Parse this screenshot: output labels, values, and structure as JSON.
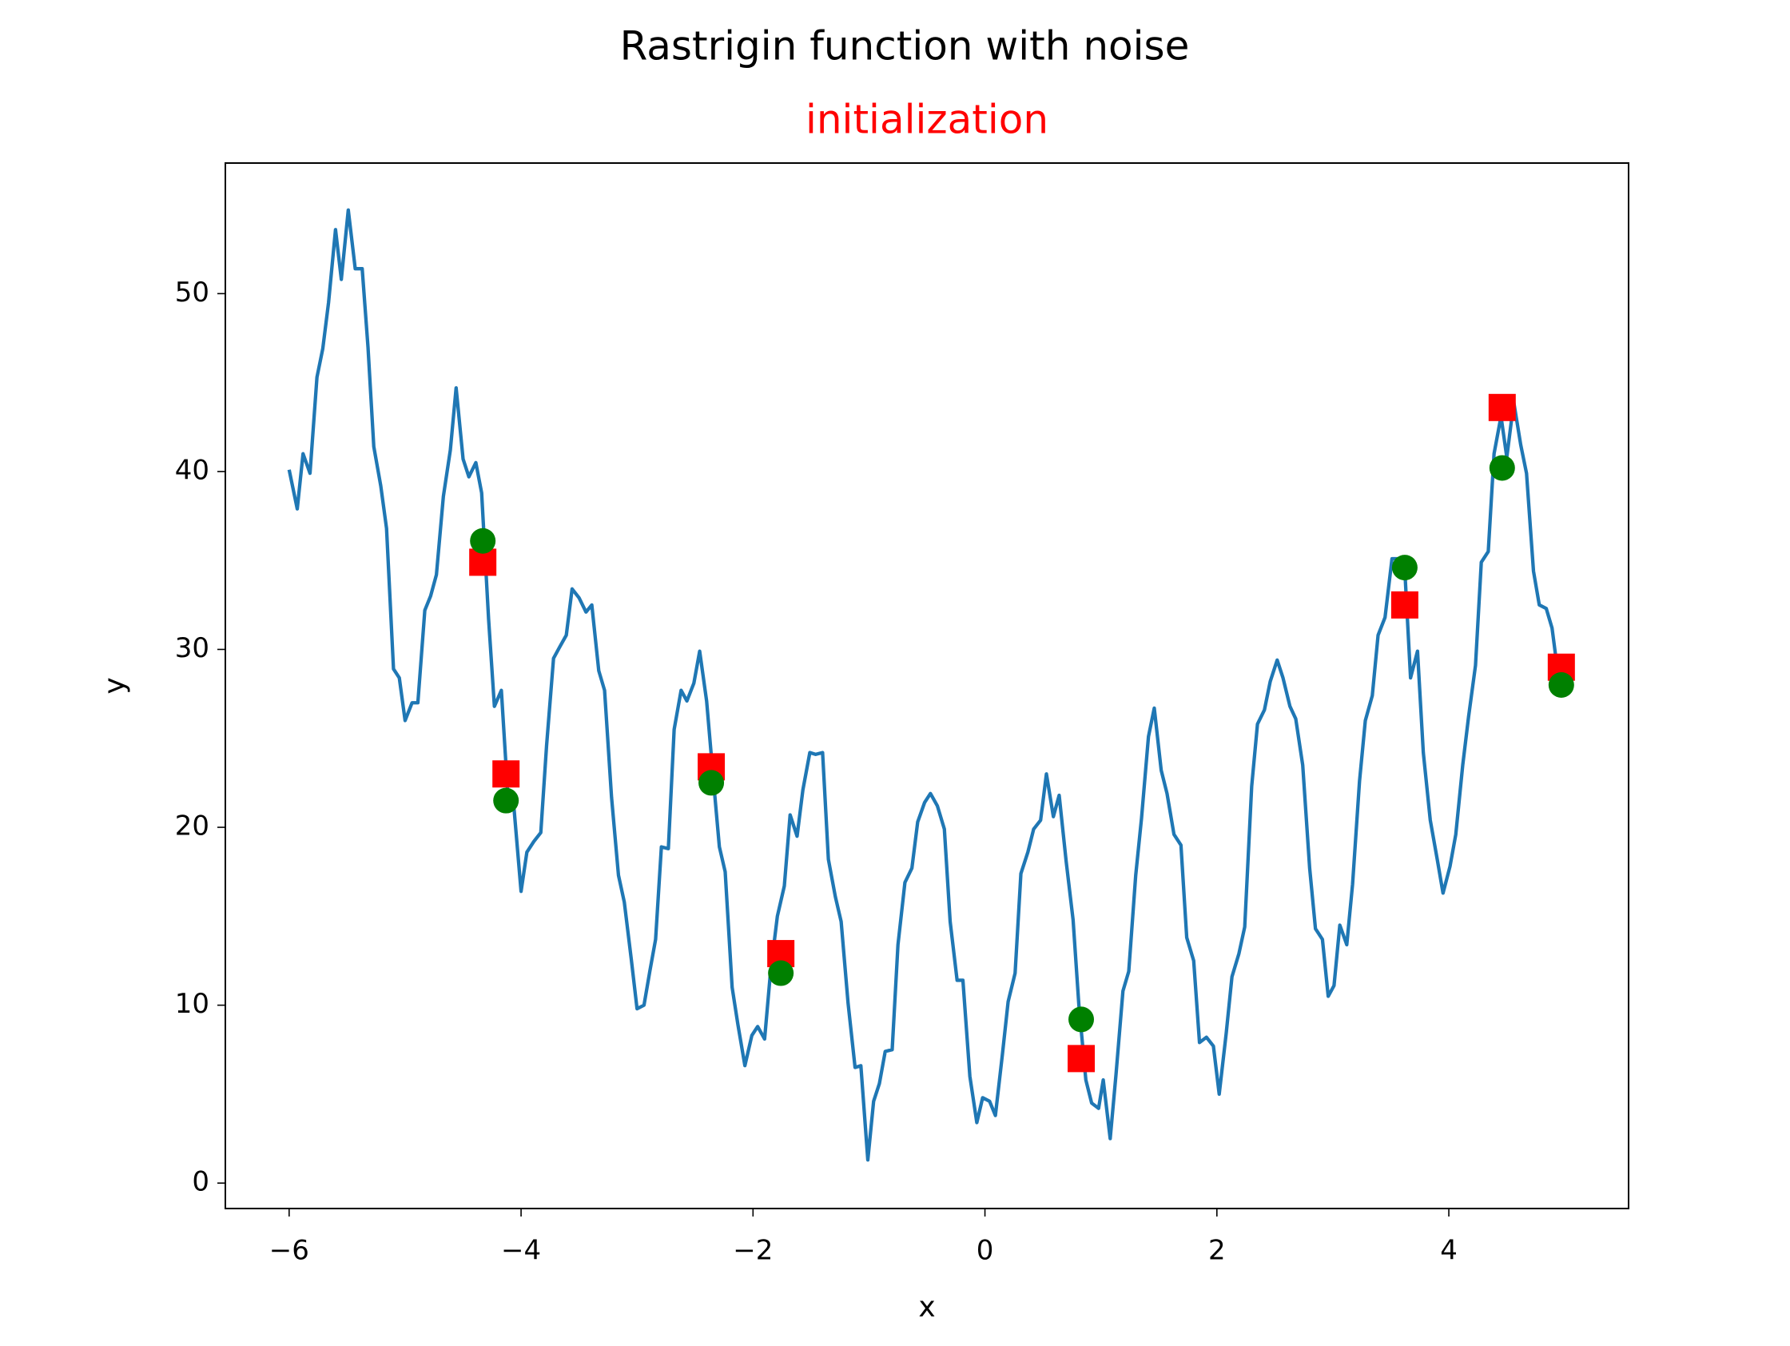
{
  "chart_data": {
    "type": "line",
    "title": "Rastrigin function with noise",
    "subtitle": "initialization",
    "subtitle_color": "#ff0000",
    "x_label": "x",
    "y_label": "y",
    "xlim": [
      -6.55,
      5.55
    ],
    "ylim": [
      -1.43,
      57.34
    ],
    "xticks": [
      {
        "value": -6,
        "label": "−6"
      },
      {
        "value": -4,
        "label": "−4"
      },
      {
        "value": -2,
        "label": "−2"
      },
      0,
      2,
      4
    ],
    "yticks": [
      0,
      10,
      20,
      30,
      40,
      50
    ],
    "grid": false,
    "series": [
      {
        "mark": "line",
        "color": "#1f77b4",
        "x": [
          -6,
          -5.93,
          -5.88,
          -5.82,
          -5.76,
          -5.71,
          -5.66,
          -5.6,
          -5.55,
          -5.49,
          -5.43,
          -5.37,
          -5.32,
          -5.27,
          -5.21,
          -5.16,
          -5.1,
          -5.05,
          -5,
          -4.94,
          -4.89,
          -4.83,
          -4.78,
          -4.73,
          -4.67,
          -4.61,
          -4.56,
          -4.5,
          -4.45,
          -4.39,
          -4.34,
          -4.28,
          -4.23,
          -4.17,
          -4.11,
          -4.06,
          -4,
          -3.95,
          -3.89,
          -3.83,
          -3.78,
          -3.72,
          -3.67,
          -3.61,
          -3.56,
          -3.5,
          -3.44,
          -3.39,
          -3.33,
          -3.28,
          -3.22,
          -3.16,
          -3.11,
          -3.05,
          -3,
          -2.94,
          -2.89,
          -2.84,
          -2.79,
          -2.73,
          -2.68,
          -2.62,
          -2.57,
          -2.51,
          -2.46,
          -2.4,
          -2.35,
          -2.29,
          -2.24,
          -2.18,
          -2.13,
          -2.07,
          -2.01,
          -1.96,
          -1.9,
          -1.85,
          -1.79,
          -1.73,
          -1.68,
          -1.62,
          -1.57,
          -1.51,
          -1.46,
          -1.4,
          -1.35,
          -1.29,
          -1.24,
          -1.18,
          -1.12,
          -1.07,
          -1.01,
          -0.96,
          -0.91,
          -0.86,
          -0.8,
          -0.75,
          -0.69,
          -0.63,
          -0.58,
          -0.52,
          -0.47,
          -0.41,
          -0.35,
          -0.3,
          -0.24,
          -0.19,
          -0.13,
          -0.07,
          -0.02,
          0.04,
          0.09,
          0.15,
          0.2,
          0.26,
          0.31,
          0.37,
          0.42,
          0.48,
          0.53,
          0.59,
          0.64,
          0.7,
          0.76,
          0.81,
          0.87,
          0.92,
          0.98,
          1.02,
          1.08,
          1.13,
          1.19,
          1.24,
          1.3,
          1.35,
          1.41,
          1.46,
          1.52,
          1.57,
          1.63,
          1.69,
          1.74,
          1.8,
          1.85,
          1.91,
          1.97,
          2.02,
          2.08,
          2.13,
          2.19,
          2.24,
          2.3,
          2.35,
          2.41,
          2.46,
          2.52,
          2.57,
          2.63,
          2.68,
          2.74,
          2.8,
          2.85,
          2.91,
          2.96,
          3.01,
          3.06,
          3.12,
          3.17,
          3.23,
          3.28,
          3.34,
          3.39,
          3.45,
          3.51,
          3.56,
          3.62,
          3.67,
          3.73,
          3.78,
          3.84,
          3.9,
          3.95,
          4.01,
          4.06,
          4.12,
          4.17,
          4.23,
          4.28,
          4.34,
          4.39,
          4.45,
          4.5,
          4.56,
          4.62,
          4.67,
          4.73,
          4.78,
          4.84,
          4.89,
          4.95,
          5
        ],
        "values": [
          40.1,
          37.9,
          41,
          39.9,
          45.3,
          46.9,
          49.5,
          53.6,
          50.8,
          54.7,
          51.4,
          51.4,
          47,
          41.4,
          39.2,
          36.8,
          28.9,
          28.4,
          26,
          27,
          27,
          32.2,
          33,
          34.2,
          38.6,
          41.2,
          44.7,
          40.7,
          39.7,
          40.5,
          38.8,
          31.7,
          26.8,
          27.7,
          21.4,
          21,
          16.4,
          18.6,
          19.2,
          19.7,
          24.6,
          29.5,
          30.1,
          30.8,
          33.4,
          32.9,
          32.1,
          32.5,
          28.8,
          27.7,
          21.7,
          17.3,
          15.8,
          12.6,
          9.8,
          10,
          11.9,
          13.7,
          18.9,
          18.8,
          25.5,
          27.7,
          27.1,
          28.1,
          29.9,
          27.1,
          23.3,
          18.9,
          17.5,
          11,
          8.9,
          6.6,
          8.3,
          8.8,
          8.1,
          11.8,
          15,
          16.7,
          20.7,
          19.5,
          22.1,
          24.2,
          24.1,
          24.2,
          18.2,
          16.1,
          14.7,
          10.1,
          6.5,
          6.6,
          1.3,
          4.6,
          5.6,
          7.4,
          7.5,
          13.4,
          16.9,
          17.7,
          20.3,
          21.4,
          21.9,
          21.2,
          19.9,
          14.7,
          11.4,
          11.4,
          6,
          3.4,
          4.8,
          4.6,
          3.8,
          7.2,
          10.2,
          11.8,
          17.4,
          18.6,
          19.9,
          20.4,
          23,
          20.6,
          21.8,
          18.1,
          14.8,
          10,
          5.8,
          4.5,
          4.2,
          5.8,
          2.5,
          6.1,
          10.8,
          11.9,
          17.3,
          20.5,
          25.1,
          26.7,
          23.2,
          21.9,
          19.6,
          19,
          13.8,
          12.5,
          7.9,
          8.2,
          7.7,
          5,
          8.4,
          11.6,
          12.9,
          14.4,
          22.3,
          25.8,
          26.6,
          28.2,
          29.4,
          28.4,
          26.8,
          26.1,
          23.5,
          17.7,
          14.3,
          13.7,
          10.5,
          11.1,
          14.5,
          13.4,
          16.8,
          22.6,
          26,
          27.4,
          30.8,
          31.8,
          35.1,
          35.1,
          34.5,
          28.4,
          29.9,
          24.2,
          20.4,
          18.2,
          16.3,
          17.8,
          19.6,
          23.5,
          26.2,
          29.1,
          34.9,
          35.5,
          41,
          43.1,
          40.8,
          43.9,
          41.5,
          39.9,
          34.4,
          32.5,
          32.3,
          31.2,
          28.2,
          28.2
        ]
      },
      {
        "mark": "square",
        "color": "#ff0000",
        "x": [
          -4.33,
          -4.13,
          -2.36,
          -1.76,
          0.83,
          3.62,
          4.46,
          4.97
        ],
        "values": [
          34.9,
          23,
          23.4,
          12.9,
          7,
          32.5,
          43.6,
          29
        ]
      },
      {
        "mark": "circle",
        "color": "#008000",
        "x": [
          -4.33,
          -4.13,
          -2.36,
          -1.76,
          0.83,
          3.62,
          4.46,
          4.97
        ],
        "values": [
          36.1,
          21.5,
          22.5,
          11.8,
          9.2,
          34.6,
          40.2,
          28
        ]
      }
    ]
  }
}
